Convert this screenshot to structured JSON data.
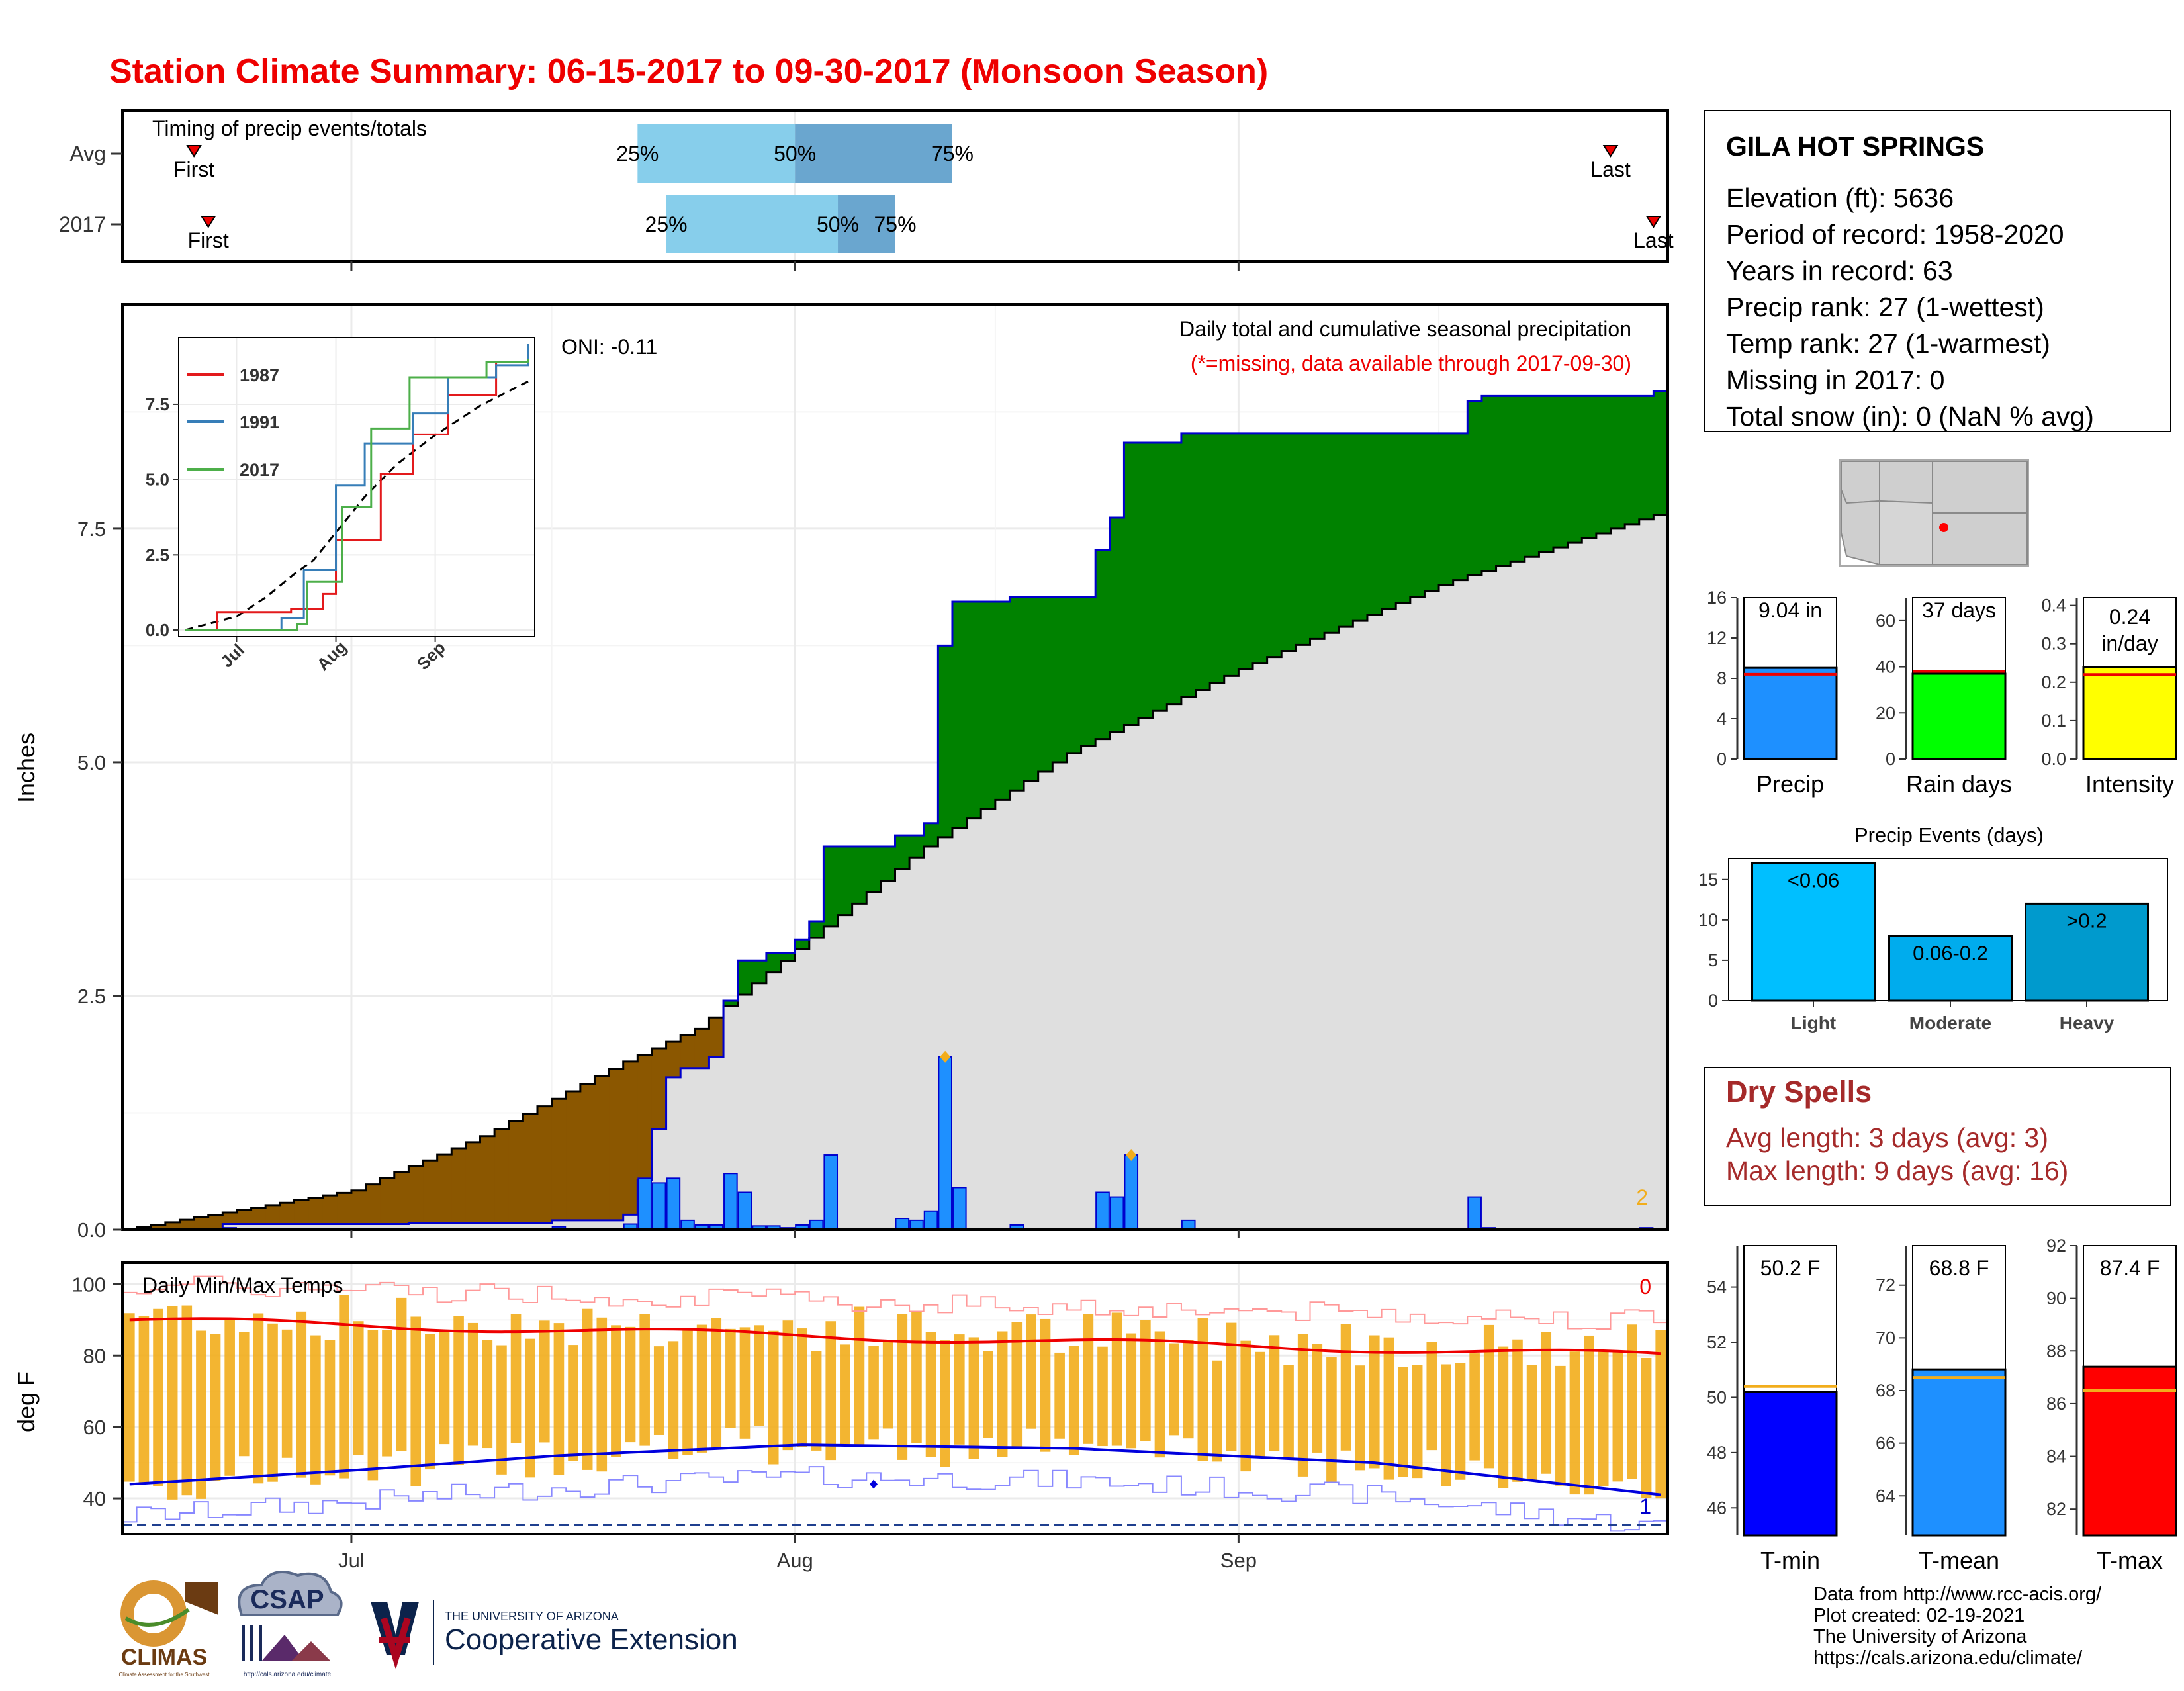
{
  "title": "Station Climate Summary: 06-15-2017 to 09-30-2017 (Monsoon Season)",
  "colors": {
    "title": "#ee0000",
    "green": "#008200",
    "brown": "#8b5700",
    "grey": "#dfdfdf",
    "bar_blue": "#1e90ff",
    "bar_edge": "#0000cd",
    "orange": "#f2ad1b",
    "tmax": "#ee0000",
    "tmin": "#0000dd",
    "light_blue": "#87ceeb",
    "mid_blue": "#6aa6cf"
  },
  "timing": {
    "label": "Timing of precip events/totals",
    "rows": [
      {
        "name": "Avg",
        "q25": "25%",
        "q50": "50%",
        "q75": "75%",
        "first": "First",
        "last": "Last",
        "q25_date": "2017-07-21",
        "q50_date": "2017-08-01",
        "q75_date": "2017-08-12",
        "first_date": "2017-06-20",
        "last_date": "2017-09-27"
      },
      {
        "name": "2017",
        "q25": "25%",
        "q50": "50%",
        "q75": "75%",
        "first": "First",
        "last": "Last",
        "q25_date": "2017-07-23",
        "q50_date": "2017-08-04",
        "q75_date": "2017-08-08",
        "first_date": "2017-06-21",
        "last_date": "2017-09-30"
      }
    ]
  },
  "station": {
    "name": "GILA HOT SPRINGS",
    "lines": [
      "Elevation (ft): 5636",
      "Period of record: 1958-2020",
      "Years in record: 63",
      "Precip rank: 27 (1-wettest)",
      "Temp rank: 27 (1-warmest)",
      "Missing in 2017: 0",
      "Total snow (in): 0 (NaN % avg)"
    ]
  },
  "precip_panel": {
    "ylabel": "Inches",
    "title": "Daily total and cumulative seasonal precipitation",
    "subtitle": "(*=missing, data available through 2017-09-30)",
    "oni": "ONI: -0.11",
    "corner_count": "2",
    "y_ticks": [
      "0.0",
      "2.5",
      "5.0",
      "7.5"
    ],
    "x_ticks": [
      "Jul",
      "Aug",
      "Sep"
    ]
  },
  "inset": {
    "legend": [
      "1987",
      "1991",
      "2017"
    ],
    "y_ticks": [
      "0.0",
      "2.5",
      "5.0",
      "7.5"
    ],
    "x_ticks": [
      "Jul",
      "Aug",
      "Sep"
    ]
  },
  "temp_panel": {
    "title": "Daily Min/Max Temps",
    "ylabel": "deg F",
    "count_top": "0",
    "count_bottom": "1",
    "y_ticks": [
      "40",
      "60",
      "80",
      "100"
    ],
    "x_ticks": [
      "Jul",
      "Aug",
      "Sep"
    ]
  },
  "summary_bars": [
    {
      "label": "Precip",
      "value_text": "9.04 in",
      "value": 9.04,
      "avg": 8.4,
      "ymax": 16,
      "ticks": [
        "0",
        "4",
        "8",
        "12",
        "16"
      ],
      "color": "#1e90ff"
    },
    {
      "label": "Rain days",
      "value_text": "37 days",
      "value": 37,
      "avg": 38,
      "ymax": 70,
      "ticks": [
        "0",
        "20",
        "40",
        "60"
      ],
      "color": "#00ff00"
    },
    {
      "label": "Intensity",
      "value_text": "0.24 in/day",
      "value_line1": "0.24",
      "value_line2": "in/day",
      "value": 0.24,
      "avg": 0.22,
      "ymax": 0.42,
      "ticks": [
        "0.0",
        "0.1",
        "0.2",
        "0.3",
        "0.4"
      ],
      "color": "#ffff00"
    }
  ],
  "precip_events": {
    "title": "Precip Events (days)",
    "y_ticks": [
      "0",
      "5",
      "10",
      "15"
    ],
    "bars": [
      {
        "label": "Light",
        "value_text": "<0.06",
        "value": 17,
        "color": "#00bfff"
      },
      {
        "label": "Moderate",
        "value_text": "0.06-0.2",
        "value": 8,
        "color": "#00aced"
      },
      {
        "label": "Heavy",
        "value_text": ">0.2",
        "value": 12,
        "color": "#009acd"
      }
    ]
  },
  "dry_spells": {
    "title": "Dry Spells",
    "avg": "Avg length: 3 days (avg: 3)",
    "max": "Max length: 9 days (avg: 16)"
  },
  "temp_bars": [
    {
      "label": "T-min",
      "value_text": "50.2 F",
      "value": 50.2,
      "avg": 50.4,
      "ymin": 45,
      "ymax": 55.5,
      "ticks": [
        "46",
        "48",
        "50",
        "52",
        "54"
      ],
      "color": "#0000ff"
    },
    {
      "label": "T-mean",
      "value_text": "68.8 F",
      "value": 68.8,
      "avg": 68.5,
      "ymin": 62.5,
      "ymax": 73.5,
      "ticks": [
        "64",
        "66",
        "68",
        "70",
        "72"
      ],
      "color": "#1e90ff"
    },
    {
      "label": "T-max",
      "value_text": "87.4 F",
      "value": 87.4,
      "avg": 86.5,
      "ymin": 81,
      "ymax": 92,
      "ticks": [
        "82",
        "84",
        "86",
        "88",
        "90",
        "92"
      ],
      "color": "#ff0000"
    }
  ],
  "footer": {
    "lines": [
      "Data from http://www.rcc-acis.org/",
      "Plot created: 02-19-2021",
      "The University of Arizona",
      "https://cals.arizona.edu/climate/"
    ],
    "logos": {
      "climas": "CLIMAS",
      "climas_sub": "Climate Assessment for the Southwest",
      "csap": "CSAP",
      "csap_url": "http://cals.arizona.edu/climate",
      "ua_small": "THE UNIVERSITY OF ARIZONA",
      "ua_big": "Cooperative Extension"
    }
  },
  "chart_data": {
    "type": "area",
    "start_date": "2017-06-15",
    "end_date": "2017-09-30",
    "daily_precip": [
      {
        "date": "2017-06-22",
        "in": 0.02
      },
      {
        "date": "2017-07-05",
        "in": 0.01
      },
      {
        "date": "2017-07-12",
        "in": 0.01
      },
      {
        "date": "2017-07-15",
        "in": 0.03
      },
      {
        "date": "2017-07-20",
        "in": 0.06
      },
      {
        "date": "2017-07-21",
        "in": 0.55
      },
      {
        "date": "2017-07-22",
        "in": 0.5
      },
      {
        "date": "2017-07-23",
        "in": 0.55
      },
      {
        "date": "2017-07-24",
        "in": 0.1
      },
      {
        "date": "2017-07-25",
        "in": 0.05
      },
      {
        "date": "2017-07-26",
        "in": 0.05
      },
      {
        "date": "2017-07-27",
        "in": 0.6
      },
      {
        "date": "2017-07-28",
        "in": 0.4
      },
      {
        "date": "2017-07-29",
        "in": 0.04
      },
      {
        "date": "2017-07-30",
        "in": 0.04
      },
      {
        "date": "2017-07-31",
        "in": 0.02
      },
      {
        "date": "2017-08-01",
        "in": 0.05
      },
      {
        "date": "2017-08-02",
        "in": 0.1
      },
      {
        "date": "2017-08-03",
        "in": 0.8
      },
      {
        "date": "2017-08-08",
        "in": 0.12
      },
      {
        "date": "2017-08-09",
        "in": 0.1
      },
      {
        "date": "2017-08-10",
        "in": 0.2
      },
      {
        "date": "2017-08-11",
        "in": 1.85
      },
      {
        "date": "2017-08-12",
        "in": 0.45
      },
      {
        "date": "2017-08-16",
        "in": 0.05
      },
      {
        "date": "2017-08-22",
        "in": 0.4
      },
      {
        "date": "2017-08-23",
        "in": 0.35
      },
      {
        "date": "2017-08-24",
        "in": 0.8
      },
      {
        "date": "2017-08-28",
        "in": 0.1
      },
      {
        "date": "2017-09-17",
        "in": 0.35
      },
      {
        "date": "2017-09-18",
        "in": 0.02
      },
      {
        "date": "2017-09-20",
        "in": 0.01
      },
      {
        "date": "2017-09-27",
        "in": 0.01
      },
      {
        "date": "2017-09-29",
        "in": 0.02
      }
    ],
    "cumulative_2017": [
      {
        "date": "2017-06-15",
        "in": 0.0
      },
      {
        "date": "2017-06-22",
        "in": 0.06
      },
      {
        "date": "2017-07-05",
        "in": 0.07
      },
      {
        "date": "2017-07-15",
        "in": 0.1
      },
      {
        "date": "2017-07-20",
        "in": 0.16
      },
      {
        "date": "2017-07-21",
        "in": 0.53
      },
      {
        "date": "2017-07-22",
        "in": 1.08
      },
      {
        "date": "2017-07-23",
        "in": 1.63
      },
      {
        "date": "2017-07-24",
        "in": 1.73
      },
      {
        "date": "2017-07-26",
        "in": 1.85
      },
      {
        "date": "2017-07-27",
        "in": 2.45
      },
      {
        "date": "2017-07-28",
        "in": 2.88
      },
      {
        "date": "2017-07-30",
        "in": 2.96
      },
      {
        "date": "2017-08-01",
        "in": 3.1
      },
      {
        "date": "2017-08-02",
        "in": 3.3
      },
      {
        "date": "2017-08-03",
        "in": 4.1
      },
      {
        "date": "2017-08-08",
        "in": 4.22
      },
      {
        "date": "2017-08-10",
        "in": 4.35
      },
      {
        "date": "2017-08-11",
        "in": 6.25
      },
      {
        "date": "2017-08-12",
        "in": 6.72
      },
      {
        "date": "2017-08-16",
        "in": 6.77
      },
      {
        "date": "2017-08-22",
        "in": 7.27
      },
      {
        "date": "2017-08-23",
        "in": 7.62
      },
      {
        "date": "2017-08-24",
        "in": 8.42
      },
      {
        "date": "2017-08-28",
        "in": 8.52
      },
      {
        "date": "2017-09-17",
        "in": 8.87
      },
      {
        "date": "2017-09-18",
        "in": 8.92
      },
      {
        "date": "2017-09-30",
        "in": 8.97
      }
    ],
    "cumulative_avg": [
      {
        "date": "2017-06-15",
        "in": 0.0
      },
      {
        "date": "2017-07-01",
        "in": 0.42
      },
      {
        "date": "2017-07-10",
        "in": 1.0
      },
      {
        "date": "2017-07-20",
        "in": 1.8
      },
      {
        "date": "2017-07-25",
        "in": 2.15
      },
      {
        "date": "2017-08-01",
        "in": 3.0
      },
      {
        "date": "2017-08-10",
        "in": 4.1
      },
      {
        "date": "2017-08-20",
        "in": 5.1
      },
      {
        "date": "2017-09-01",
        "in": 6.0
      },
      {
        "date": "2017-09-15",
        "in": 6.9
      },
      {
        "date": "2017-09-30",
        "in": 7.65
      }
    ],
    "inset_series": [
      {
        "name": "1987",
        "points": [
          {
            "date": "2017-06-15",
            "in": 0.0
          },
          {
            "date": "2017-06-25",
            "in": 0.6
          },
          {
            "date": "2017-07-18",
            "in": 0.7
          },
          {
            "date": "2017-07-28",
            "in": 1.2
          },
          {
            "date": "2017-08-01",
            "in": 3.0
          },
          {
            "date": "2017-08-15",
            "in": 5.2
          },
          {
            "date": "2017-08-25",
            "in": 6.5
          },
          {
            "date": "2017-09-05",
            "in": 7.8
          },
          {
            "date": "2017-09-20",
            "in": 8.9
          },
          {
            "date": "2017-09-30",
            "in": 9.3
          }
        ]
      },
      {
        "name": "1991",
        "points": [
          {
            "date": "2017-06-15",
            "in": 0.0
          },
          {
            "date": "2017-07-15",
            "in": 0.4
          },
          {
            "date": "2017-07-22",
            "in": 2.0
          },
          {
            "date": "2017-08-01",
            "in": 4.8
          },
          {
            "date": "2017-08-10",
            "in": 6.2
          },
          {
            "date": "2017-08-25",
            "in": 7.2
          },
          {
            "date": "2017-09-05",
            "in": 8.4
          },
          {
            "date": "2017-09-20",
            "in": 8.8
          },
          {
            "date": "2017-09-30",
            "in": 9.5
          }
        ]
      },
      {
        "name": "2017",
        "points": [
          {
            "date": "2017-06-15",
            "in": 0.0
          },
          {
            "date": "2017-07-20",
            "in": 0.2
          },
          {
            "date": "2017-07-23",
            "in": 1.6
          },
          {
            "date": "2017-08-03",
            "in": 4.1
          },
          {
            "date": "2017-08-12",
            "in": 6.7
          },
          {
            "date": "2017-08-24",
            "in": 8.4
          },
          {
            "date": "2017-09-17",
            "in": 8.9
          },
          {
            "date": "2017-09-30",
            "in": 9.0
          }
        ]
      }
    ],
    "temps": {
      "tmax_avg_start": 90,
      "tmax_avg_end": 80,
      "tmin_avg": [
        {
          "date": "2017-06-15",
          "f": 44
        },
        {
          "date": "2017-07-01",
          "f": 48
        },
        {
          "date": "2017-07-15",
          "f": 52
        },
        {
          "date": "2017-08-01",
          "f": 55
        },
        {
          "date": "2017-08-20",
          "f": 54
        },
        {
          "date": "2017-09-10",
          "f": 50
        },
        {
          "date": "2017-09-30",
          "f": 41
        }
      ],
      "record_low_line": 32.5
    }
  }
}
